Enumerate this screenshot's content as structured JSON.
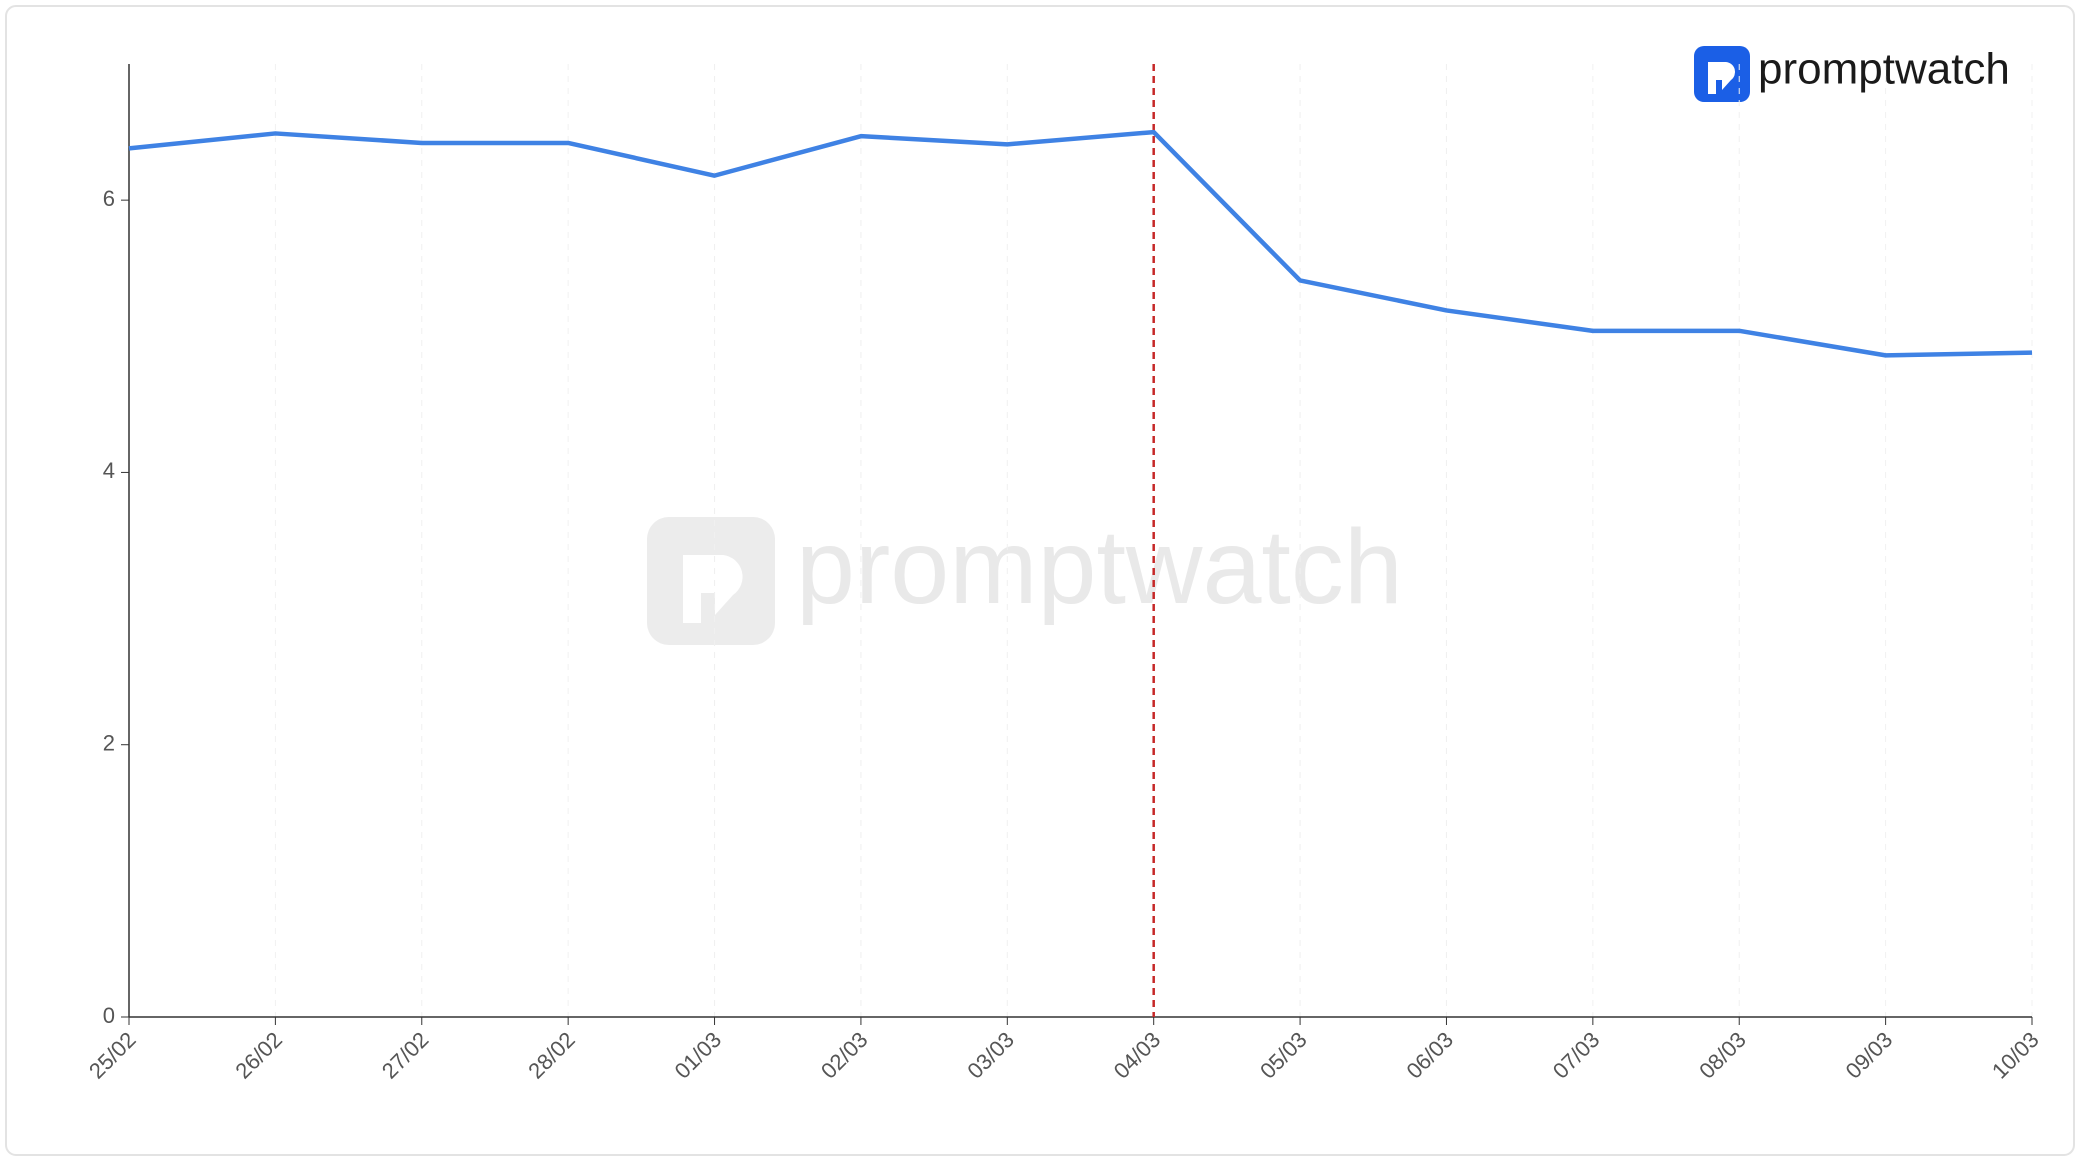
{
  "chart_data": {
    "type": "line",
    "logo": "promptwatch",
    "categories": [
      "25/02",
      "26/02",
      "27/02",
      "28/02",
      "01/03",
      "02/03",
      "03/03",
      "04/03",
      "05/03",
      "06/03",
      "07/03",
      "08/03",
      "09/03",
      "10/03"
    ],
    "series": [
      {
        "color": "#3f82e4",
        "values": [
          6.38,
          6.49,
          6.42,
          6.42,
          6.18,
          6.47,
          6.41,
          6.5,
          5.41,
          5.19,
          5.04,
          5.04,
          4.86,
          4.88
        ]
      }
    ],
    "ylim": [
      0,
      7
    ],
    "yticks": [
      0,
      2,
      4,
      6
    ],
    "grid": "x",
    "reference_line": {
      "category": "04/03",
      "color": "#c62828"
    }
  }
}
